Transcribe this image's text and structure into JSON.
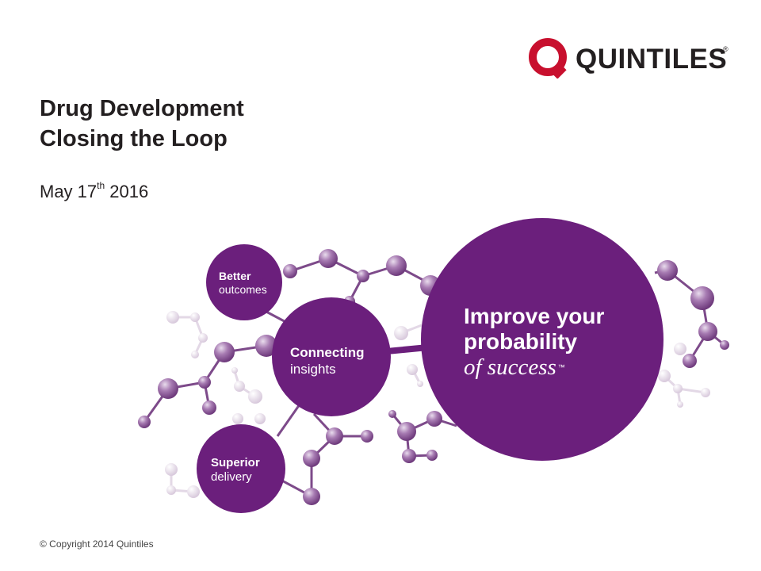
{
  "logo": {
    "wordmark": "QUINTILES",
    "registered": "®",
    "ring_color": "#c8102e"
  },
  "title": {
    "line1": "Drug Development",
    "line2": "Closing the Loop"
  },
  "date": {
    "prefix": "May 17",
    "superscript": "th",
    "suffix": " 2016"
  },
  "circles": {
    "better": {
      "bold": "Better",
      "light": "outcomes"
    },
    "connecting": {
      "bold": "Connecting",
      "light": "insights"
    },
    "superior": {
      "bold": "Superior",
      "light": "delivery"
    },
    "improve": {
      "line1": "Improve your",
      "line2": "probability",
      "italic": "of success",
      "trademark": "™"
    }
  },
  "footer": {
    "copyright": "© Copyright 2014 Quintiles"
  },
  "colors": {
    "brand_purple": "#6b1f7c",
    "node_purple": "#8e5a99",
    "pale_purple": "#dccfe0"
  }
}
